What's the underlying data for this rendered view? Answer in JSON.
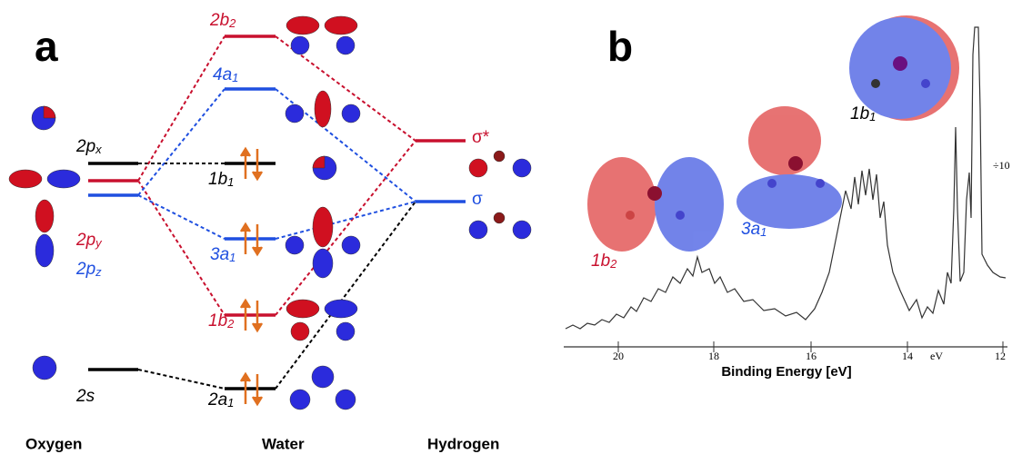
{
  "panel_a": {
    "label": "a",
    "columns": [
      "Oxygen",
      "Water",
      "Hydrogen"
    ],
    "oxygen_levels": [
      {
        "main": "2p",
        "sub": "x"
      },
      {
        "main": "2p",
        "sub": "y"
      },
      {
        "main": "2p",
        "sub": "z"
      },
      {
        "main": "2s"
      }
    ],
    "water_levels": [
      {
        "main": "2b",
        "sub": "2"
      },
      {
        "main": "4a",
        "sub": "1"
      },
      {
        "main": "1b",
        "sub": "1"
      },
      {
        "main": "3a",
        "sub": "1"
      },
      {
        "main": "1b",
        "sub": "2"
      },
      {
        "main": "2a",
        "sub": "1"
      }
    ],
    "hydrogen_levels": [
      "σ*",
      "σ"
    ]
  },
  "panel_b": {
    "label": "b",
    "axis_title": "Binding Energy [eV]",
    "ticks": [
      "20",
      "18",
      "16",
      "14",
      "12"
    ],
    "unit": "eV",
    "scale_note": "÷10",
    "orbitals": [
      {
        "main": "1b",
        "sub": "2"
      },
      {
        "main": "3a",
        "sub": "1"
      },
      {
        "main": "1b",
        "sub": "1"
      }
    ]
  }
}
